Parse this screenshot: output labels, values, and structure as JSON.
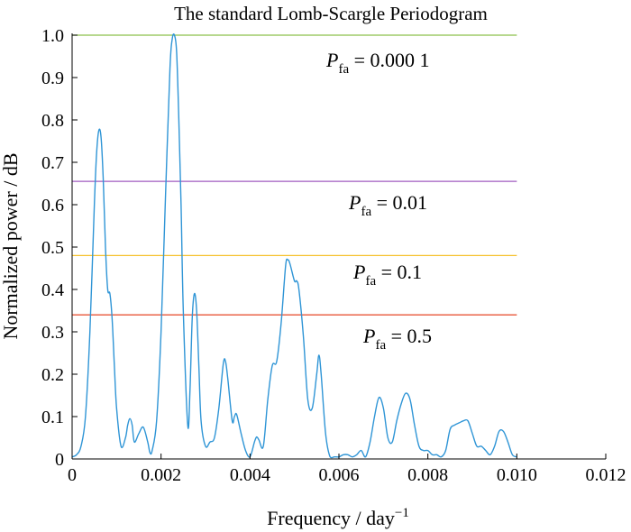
{
  "chart_data": {
    "type": "line",
    "title": "The standard Lomb-Scargle Periodogram",
    "xlabel": "Frequency / day",
    "xlabel_superscript": "−1",
    "ylabel": "Normalized power / dB",
    "xlim": [
      0,
      0.012
    ],
    "ylim": [
      0,
      1.0
    ],
    "xticks": [
      "0",
      "0.002",
      "0.004",
      "0.006",
      "0.008",
      "0.010",
      "0.012"
    ],
    "yticks": [
      "0",
      "0.1",
      "0.2",
      "0.3",
      "0.4",
      "0.5",
      "0.6",
      "0.7",
      "0.8",
      "0.9",
      "1.0"
    ],
    "grid": false,
    "series": [
      {
        "color": "#2f95d6",
        "x": [
          0,
          0.0001,
          0.0002,
          0.0003,
          0.0004,
          0.0005,
          0.00055,
          0.0006,
          0.00065,
          0.0007,
          0.00075,
          0.0008,
          0.00085,
          0.0009,
          0.00095,
          0.001,
          0.0011,
          0.0012,
          0.00125,
          0.0013,
          0.00135,
          0.0014,
          0.0015,
          0.0016,
          0.0017,
          0.00175,
          0.0018,
          0.0019,
          0.002,
          0.0021,
          0.0022,
          0.00225,
          0.0023,
          0.00235,
          0.0024,
          0.00245,
          0.0025,
          0.0026,
          0.00265,
          0.0027,
          0.00275,
          0.0028,
          0.00285,
          0.0029,
          0.003,
          0.0031,
          0.0032,
          0.0033,
          0.0034,
          0.00345,
          0.0035,
          0.0036,
          0.00365,
          0.0037,
          0.0038,
          0.0039,
          0.004,
          0.0041,
          0.00415,
          0.0042,
          0.0043,
          0.0044,
          0.0045,
          0.0046,
          0.0047,
          0.0048,
          0.00485,
          0.0049,
          0.005,
          0.00505,
          0.0051,
          0.0052,
          0.0053,
          0.0054,
          0.0055,
          0.00555,
          0.0056,
          0.0057,
          0.0058,
          0.0059,
          0.006,
          0.0061,
          0.0062,
          0.0063,
          0.0064,
          0.0065,
          0.0066,
          0.0067,
          0.0068,
          0.0069,
          0.007,
          0.0071,
          0.0072,
          0.0073,
          0.0074,
          0.0075,
          0.0076,
          0.0077,
          0.0078,
          0.0079,
          0.008,
          0.0081,
          0.0082,
          0.0083,
          0.0084,
          0.0085,
          0.0086,
          0.0087,
          0.0088,
          0.0089,
          0.009,
          0.0091,
          0.0092,
          0.0093,
          0.0094,
          0.0095,
          0.0096,
          0.0097,
          0.0098,
          0.0099,
          0.01
        ],
        "values": [
          0.005,
          0.01,
          0.03,
          0.1,
          0.3,
          0.6,
          0.72,
          0.775,
          0.76,
          0.66,
          0.5,
          0.4,
          0.39,
          0.33,
          0.22,
          0.12,
          0.03,
          0.05,
          0.08,
          0.095,
          0.08,
          0.04,
          0.06,
          0.075,
          0.04,
          0.015,
          0.02,
          0.09,
          0.3,
          0.62,
          0.92,
          0.99,
          1.0,
          0.96,
          0.8,
          0.6,
          0.35,
          0.08,
          0.16,
          0.33,
          0.39,
          0.35,
          0.22,
          0.09,
          0.03,
          0.04,
          0.05,
          0.12,
          0.225,
          0.23,
          0.19,
          0.09,
          0.1,
          0.105,
          0.06,
          0.02,
          0.005,
          0.04,
          0.052,
          0.045,
          0.03,
          0.14,
          0.22,
          0.23,
          0.32,
          0.455,
          0.47,
          0.46,
          0.42,
          0.42,
          0.4,
          0.29,
          0.14,
          0.12,
          0.2,
          0.245,
          0.2,
          0.06,
          0.005,
          0.005,
          0.005,
          0.01,
          0.01,
          0.005,
          0.01,
          0.02,
          0.005,
          0.04,
          0.1,
          0.145,
          0.12,
          0.05,
          0.04,
          0.09,
          0.13,
          0.155,
          0.14,
          0.08,
          0.03,
          0.02,
          0.02,
          0.01,
          0.01,
          0.005,
          0.02,
          0.07,
          0.08,
          0.085,
          0.09,
          0.09,
          0.06,
          0.03,
          0.03,
          0.02,
          0.01,
          0.03,
          0.065,
          0.065,
          0.04,
          0.01,
          0.005
        ]
      }
    ],
    "threshold_lines": [
      {
        "value": 1.0,
        "color": "#8cc04a",
        "label_main": "P",
        "label_sub": "fa",
        "label_rest": " = 0.000 1"
      },
      {
        "value": 0.655,
        "color": "#a05cc0",
        "label_main": "P",
        "label_sub": "fa",
        "label_rest": " = 0.01"
      },
      {
        "value": 0.48,
        "color": "#f6c12e",
        "label_main": "P",
        "label_sub": "fa",
        "label_rest": " = 0.1"
      },
      {
        "value": 0.34,
        "color": "#e8573a",
        "label_main": "P",
        "label_sub": "fa",
        "label_rest": " = 0.5"
      }
    ]
  }
}
